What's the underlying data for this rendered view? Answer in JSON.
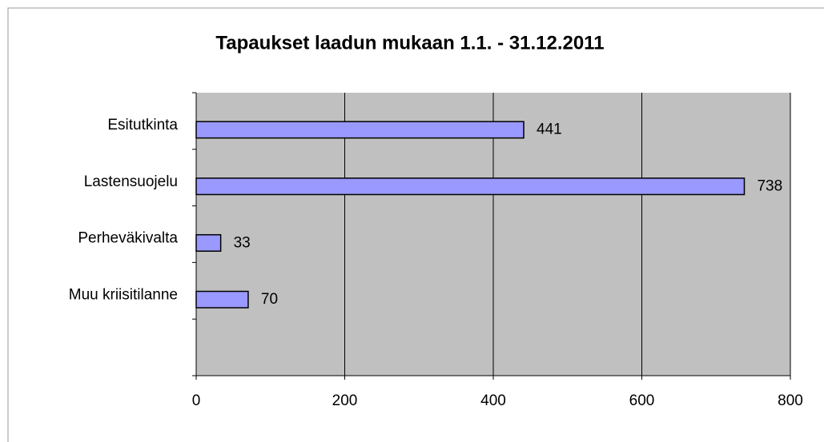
{
  "chart_data": {
    "type": "bar",
    "orientation": "horizontal",
    "title": "Tapaukset laadun mukaan 1.1. - 31.12.2011",
    "categories": [
      "Esitutkinta",
      "Lastensuojelu",
      "Perheväkivalta",
      "Muu kriisitilanne",
      null
    ],
    "values": [
      441,
      738,
      33,
      70,
      null
    ],
    "color": "#9999ff",
    "xlim": [
      0,
      800
    ],
    "xticks": [
      0,
      200,
      400,
      600,
      800
    ],
    "grid": true
  }
}
